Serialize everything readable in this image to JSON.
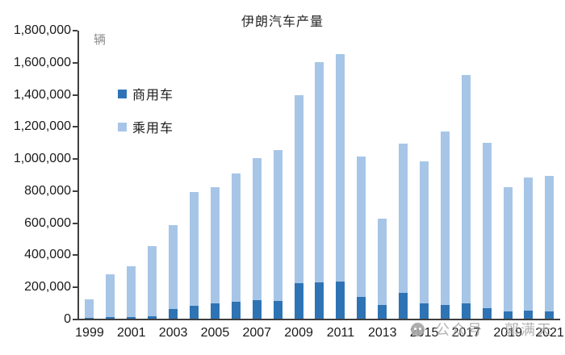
{
  "chart_data": {
    "type": "bar",
    "stacked": true,
    "title": "伊朗汽车产量",
    "unit_label": "辆",
    "categories": [
      "1999",
      "2000",
      "2001",
      "2002",
      "2003",
      "2004",
      "2005",
      "2006",
      "2007",
      "2008",
      "2009",
      "2010",
      "2011",
      "2012",
      "2013",
      "2014",
      "2015",
      "2016",
      "2017",
      "2018",
      "2019",
      "2020",
      "2021"
    ],
    "series": [
      {
        "name": "商用车",
        "color": "#2E74B5",
        "values": [
          5000,
          8000,
          10000,
          15000,
          60000,
          80000,
          95000,
          105000,
          115000,
          112000,
          220000,
          228000,
          233000,
          137000,
          88000,
          163000,
          95000,
          88000,
          97000,
          65000,
          45000,
          48000,
          43000
        ]
      },
      {
        "name": "乘用车",
        "color": "#A7C6E7",
        "values": [
          115000,
          270000,
          315000,
          440000,
          525000,
          710000,
          725000,
          800000,
          885000,
          940000,
          1175000,
          1372000,
          1417000,
          875000,
          537000,
          928000,
          885000,
          1077000,
          1420000,
          1030000,
          775000,
          832000,
          845000
        ]
      }
    ],
    "totals": [
      120000,
      278000,
      325000,
      455000,
      585000,
      790000,
      820000,
      905000,
      1000000,
      1052000,
      1395000,
      1600000,
      1650000,
      1012000,
      625000,
      1091000,
      980000,
      1165000,
      1517000,
      1095000,
      820000,
      880000,
      888000
    ],
    "ylim": [
      0,
      1800000
    ],
    "ytick_interval": 200000,
    "ytick_labels_top_down": [
      "1,800,000",
      "1,600,000",
      "1,400,000",
      "1,200,000",
      "1,000,000",
      "800,000",
      "600,000",
      "400,000",
      "200,000",
      "0"
    ],
    "xtick_labels": [
      "1999",
      "2001",
      "2003",
      "2005",
      "2007",
      "2009",
      "2011",
      "2013",
      "2015",
      "2017",
      "2019",
      "2021"
    ],
    "legend_position": "upper-left-inside",
    "grid": false
  },
  "watermark": {
    "icon": "wechat-icon",
    "text": "公众号",
    "author": "郭满天"
  },
  "colors": {
    "axis": "#3f3f3f",
    "label_text": "#1a1a1a",
    "unit_text": "#8c8c8c",
    "watermark": "#a5a5a5"
  }
}
